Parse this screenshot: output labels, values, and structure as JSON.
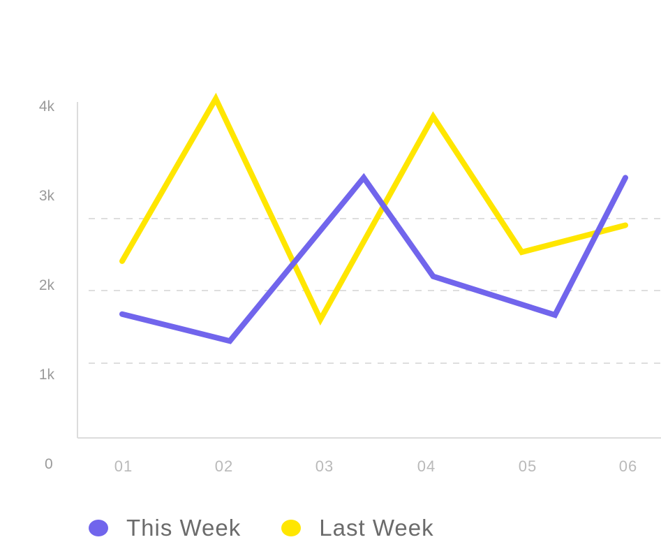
{
  "chart_data": {
    "type": "line",
    "title": "",
    "xlabel": "",
    "ylabel": "",
    "categories": [
      "01",
      "02",
      "03",
      "04",
      "05",
      "06"
    ],
    "y_ticks": [
      "0",
      "1k",
      "2k",
      "3k",
      "4k"
    ],
    "ylim": [
      0,
      4000
    ],
    "grid": "horizontal dashed",
    "legend_position": "bottom-left",
    "series": [
      {
        "name": "This Week",
        "color": "#7165ec",
        "x": [
          0.0,
          1.07,
          2.4,
          3.09,
          4.3,
          5.0
        ],
        "values": [
          1380,
          1080,
          2900,
          1800,
          1370,
          2900
        ]
      },
      {
        "name": "Last Week",
        "color": "#ffe600",
        "x": [
          0.0,
          0.93,
          1.97,
          3.09,
          3.97,
          5.0
        ],
        "values": [
          1970,
          3780,
          1320,
          3580,
          2070,
          2370
        ]
      }
    ]
  }
}
